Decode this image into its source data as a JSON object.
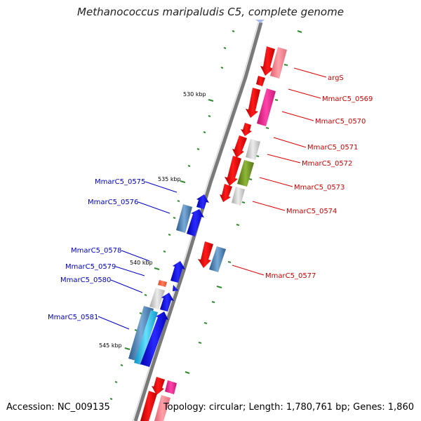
{
  "title": "Methanococcus maripaludis C5, complete genome",
  "footer": {
    "accession": "Accession: NC_009135",
    "summary": "Topology: circular; Length: 1,780,761 bp; Genes: 1,860"
  },
  "scale_labels": [
    "530 kbp",
    "535 kbp",
    "540 kbp",
    "545 kbp"
  ],
  "forward_genes": [
    "argS",
    "MmarC5_0569",
    "MmarC5_0570",
    "MmarC5_0571",
    "MmarC5_0572",
    "MmarC5_0573",
    "MmarC5_0574",
    "MmarC5_0577"
  ],
  "reverse_genes": [
    "MmarC5_0575",
    "MmarC5_0576",
    "MmarC5_0578",
    "MmarC5_0579",
    "MmarC5_0580",
    "MmarC5_0581"
  ],
  "colors": {
    "forward_label": "#cc0000",
    "reverse_label": "#0000bb",
    "backbone": "#777777",
    "tick": "#228b22",
    "feature_red": "#ee0000",
    "feature_blue": "#1a1aee",
    "feature_pink": "#ff4d6d",
    "feature_magenta": "#ee1493",
    "feature_grey": "#c8c8c8",
    "feature_olive": "#6b8e23",
    "feature_steel": "#4a7fb0",
    "feature_cyan": "#22bbee"
  }
}
